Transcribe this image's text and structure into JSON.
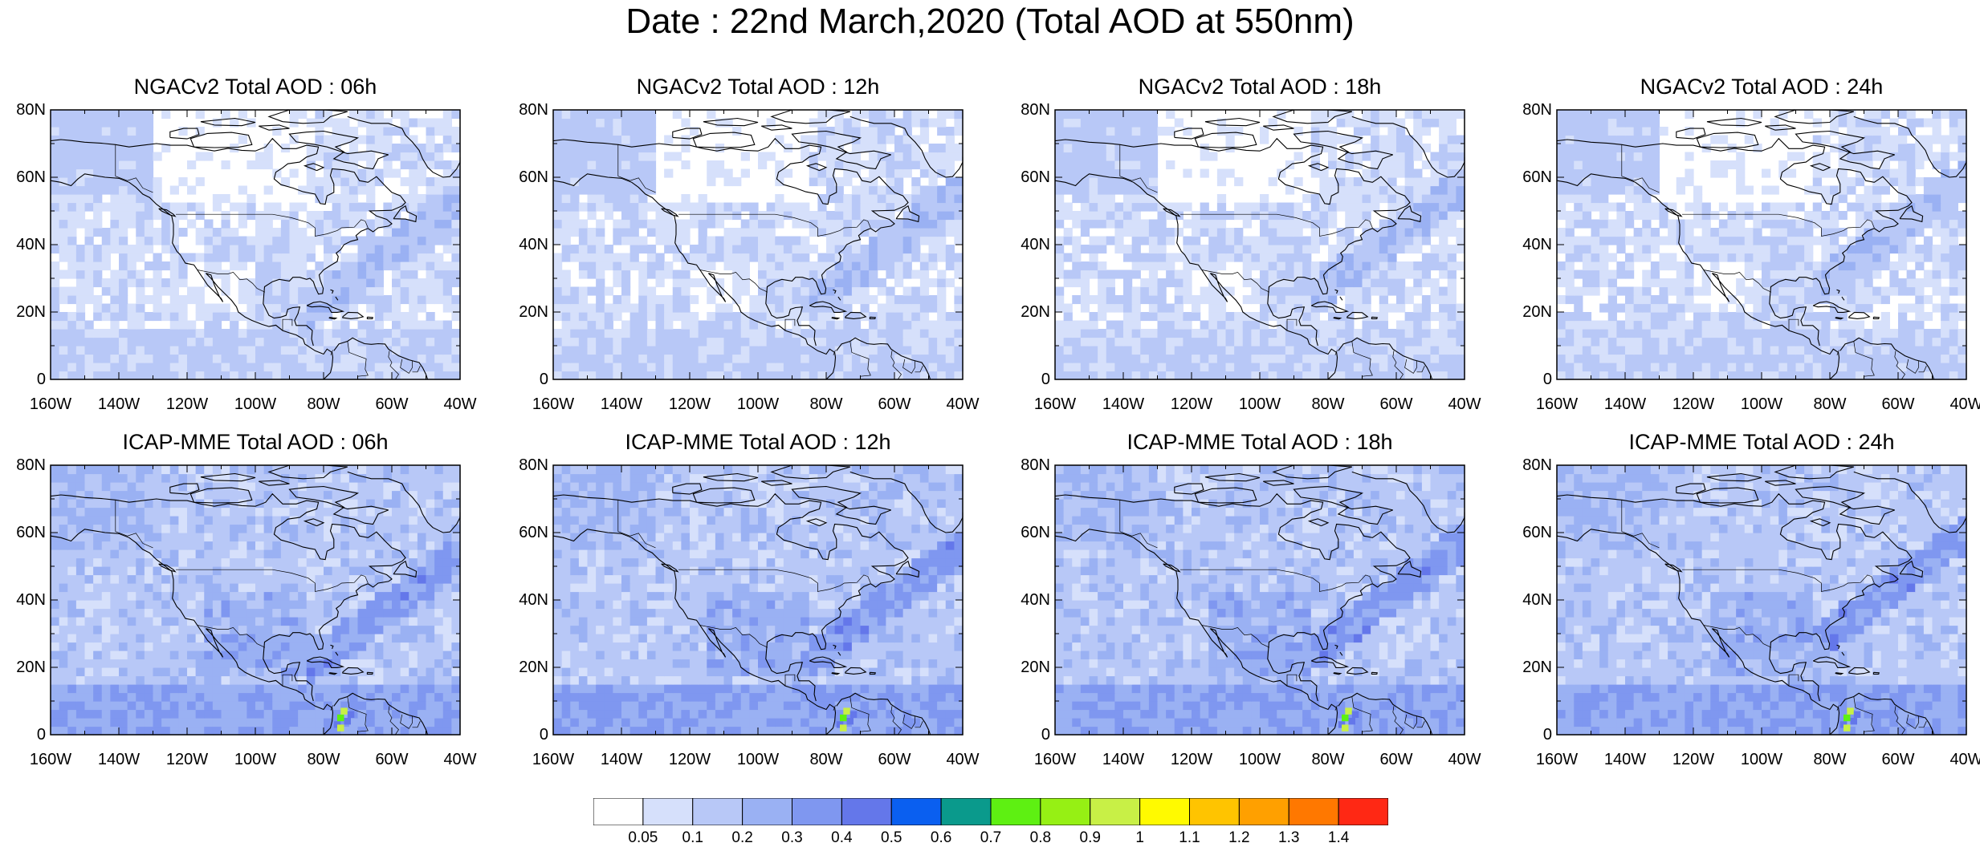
{
  "title": "Date : 22nd March,2020 (Total AOD at 550nm)",
  "lat_ticks": [
    "0",
    "20N",
    "40N",
    "60N",
    "80N"
  ],
  "lon_ticks": [
    "160W",
    "140W",
    "120W",
    "100W",
    "80W",
    "60W",
    "40W"
  ],
  "panels": [
    {
      "title": "NGACv2 Total AOD : 06h",
      "model": "NGACv2",
      "forecast_hour": "06h"
    },
    {
      "title": "NGACv2 Total AOD : 12h",
      "model": "NGACv2",
      "forecast_hour": "12h"
    },
    {
      "title": "NGACv2 Total AOD : 18h",
      "model": "NGACv2",
      "forecast_hour": "18h"
    },
    {
      "title": "NGACv2 Total AOD : 24h",
      "model": "NGACv2",
      "forecast_hour": "24h"
    },
    {
      "title": "ICAP-MME Total AOD : 06h",
      "model": "ICAP-MME",
      "forecast_hour": "06h"
    },
    {
      "title": "ICAP-MME Total AOD : 12h",
      "model": "ICAP-MME",
      "forecast_hour": "12h"
    },
    {
      "title": "ICAP-MME Total AOD : 18h",
      "model": "ICAP-MME",
      "forecast_hour": "18h"
    },
    {
      "title": "ICAP-MME Total AOD : 24h",
      "model": "ICAP-MME",
      "forecast_hour": "24h"
    }
  ],
  "colorbar": {
    "labels": [
      "0.05",
      "0.1",
      "0.2",
      "0.3",
      "0.4",
      "0.5",
      "0.6",
      "0.7",
      "0.8",
      "0.9",
      "1",
      "1.1",
      "1.2",
      "1.3",
      "1.4"
    ],
    "colors": [
      "#ffffff",
      "#d6e0fb",
      "#b8c8f7",
      "#9ab1f3",
      "#7f97f0",
      "#6477ea",
      "#0a5ff0",
      "#0a9a8c",
      "#5ef012",
      "#96f014",
      "#c8f046",
      "#fffa00",
      "#ffc400",
      "#ffa000",
      "#ff7800",
      "#ff2814"
    ]
  },
  "map_colors": {
    "background": "#ffffff",
    "level_1": "#d6e0fb",
    "level_2": "#b8c8f7",
    "level_3": "#9ab1f3",
    "level_4": "#7f97f0",
    "level_5": "#6477ea",
    "hotspot_a": "#5ef012",
    "hotspot_b": "#c8f046",
    "coast": "#000000"
  }
}
